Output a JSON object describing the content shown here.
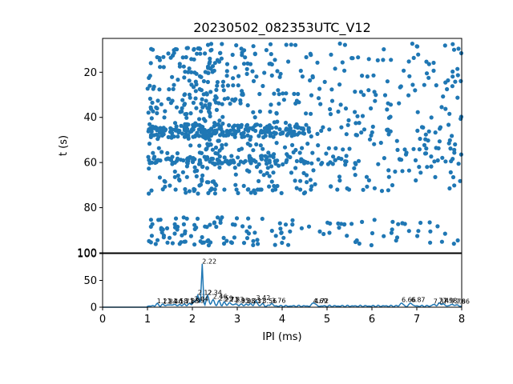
{
  "chart_data": [
    {
      "type": "scatter",
      "title": "20230502_082353UTC_V12",
      "xlabel": "",
      "ylabel": "t (s)",
      "xlim": [
        0,
        8
      ],
      "ylim": [
        100,
        5
      ],
      "y_inverted": true,
      "ytick_labels": [
        "20",
        "40",
        "60",
        "80",
        "100"
      ],
      "x_ticks_shown": false,
      "color": "#1f77b4",
      "density_bands": [
        {
          "x_range": [
            1.0,
            2.0
          ],
          "t_range": [
            7,
            97
          ],
          "count": 180
        },
        {
          "x_range": [
            2.0,
            2.7
          ],
          "t_range": [
            7,
            97
          ],
          "count": 200
        },
        {
          "x_range": [
            2.7,
            4.0
          ],
          "t_range": [
            7,
            97
          ],
          "count": 170
        },
        {
          "x_range": [
            4.0,
            5.5
          ],
          "t_range": [
            7,
            97
          ],
          "count": 130
        },
        {
          "x_range": [
            5.5,
            8.0
          ],
          "t_range": [
            7,
            97
          ],
          "count": 200
        },
        {
          "x_range": [
            1.0,
            4.5
          ],
          "t_range": [
            43,
            49
          ],
          "count": 160
        },
        {
          "x_range": [
            1.0,
            5.5
          ],
          "t_range": [
            57,
            61
          ],
          "count": 80
        }
      ]
    },
    {
      "type": "line",
      "title": "",
      "xlabel": "IPI (ms)",
      "ylabel": "",
      "xlim": [
        0,
        8
      ],
      "ylim": [
        0,
        100
      ],
      "xtick_labels": [
        "0",
        "1",
        "2",
        "3",
        "4",
        "5",
        "6",
        "7",
        "8"
      ],
      "ytick_labels": [
        "0",
        "50",
        "100"
      ],
      "color": "#1f77b4",
      "peaks": [
        {
          "x": 1.21,
          "y": 6,
          "label": "1.21"
        },
        {
          "x": 1.34,
          "y": 5,
          "label": "1.34"
        },
        {
          "x": 1.46,
          "y": 5,
          "label": "1.46"
        },
        {
          "x": 1.58,
          "y": 6,
          "label": "1.58"
        },
        {
          "x": 1.71,
          "y": 5,
          "label": "1.71"
        },
        {
          "x": 1.83,
          "y": 6,
          "label": "1.83"
        },
        {
          "x": 1.95,
          "y": 7,
          "label": "1.95"
        },
        {
          "x": 2.04,
          "y": 10,
          "label": "2.04"
        },
        {
          "x": 2.12,
          "y": 22,
          "label": "2.12"
        },
        {
          "x": 2.22,
          "y": 80,
          "label": "2.22"
        },
        {
          "x": 2.34,
          "y": 22,
          "label": "2.34"
        },
        {
          "x": 2.46,
          "y": 14,
          "label": "2.46"
        },
        {
          "x": 2.59,
          "y": 11,
          "label": "2.59"
        },
        {
          "x": 2.71,
          "y": 9,
          "label": "2.71"
        },
        {
          "x": 2.83,
          "y": 9,
          "label": "2.83"
        },
        {
          "x": 2.95,
          "y": 7,
          "label": "2.95"
        },
        {
          "x": 3.08,
          "y": 6,
          "label": "3.08"
        },
        {
          "x": 3.21,
          "y": 6,
          "label": "3.21"
        },
        {
          "x": 3.31,
          "y": 6,
          "label": "3.31"
        },
        {
          "x": 3.42,
          "y": 12,
          "label": "3.42"
        },
        {
          "x": 3.56,
          "y": 6,
          "label": "3.56"
        },
        {
          "x": 3.76,
          "y": 7,
          "label": "3.76"
        },
        {
          "x": 4.69,
          "y": 6,
          "label": "4.69"
        },
        {
          "x": 4.72,
          "y": 6,
          "label": "4.72"
        },
        {
          "x": 6.66,
          "y": 8,
          "label": "6.66"
        },
        {
          "x": 6.87,
          "y": 8,
          "label": "6.87"
        },
        {
          "x": 7.37,
          "y": 5,
          "label": "7.37"
        },
        {
          "x": 7.49,
          "y": 7,
          "label": "7.49"
        },
        {
          "x": 7.58,
          "y": 7,
          "label": "7.58"
        },
        {
          "x": 7.76,
          "y": 5,
          "label": "7.76"
        },
        {
          "x": 7.86,
          "y": 5,
          "label": "7.86"
        }
      ]
    }
  ]
}
